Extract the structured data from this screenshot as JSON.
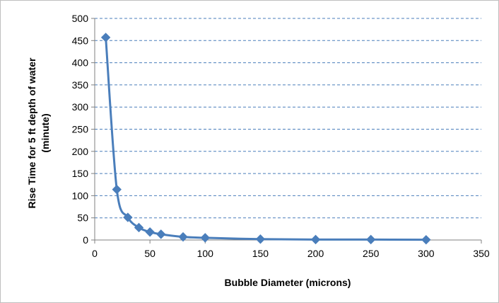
{
  "chart_data": {
    "type": "line",
    "title": "",
    "xlabel": "Bubble Diameter (microns)",
    "ylabel_line1": "Rise Time for 5 ft depth of water",
    "ylabel_line2": "(minute)",
    "xlim": [
      0,
      350
    ],
    "ylim": [
      0,
      500
    ],
    "x_ticks": [
      0,
      50,
      100,
      150,
      200,
      250,
      300,
      350
    ],
    "y_ticks": [
      0,
      50,
      100,
      150,
      200,
      250,
      300,
      350,
      400,
      450,
      500
    ],
    "grid": "horizontal dashed",
    "legend": "none",
    "marker": "diamond",
    "smooth": true,
    "series_color": "#4a7ebb",
    "grid_color": "#4a7ebb",
    "points": [
      {
        "x": 10,
        "y": 457
      },
      {
        "x": 20,
        "y": 114
      },
      {
        "x": 30,
        "y": 51
      },
      {
        "x": 40,
        "y": 28
      },
      {
        "x": 50,
        "y": 18
      },
      {
        "x": 60,
        "y": 13
      },
      {
        "x": 80,
        "y": 7
      },
      {
        "x": 100,
        "y": 5
      },
      {
        "x": 150,
        "y": 2
      },
      {
        "x": 200,
        "y": 1
      },
      {
        "x": 250,
        "y": 1
      },
      {
        "x": 300,
        "y": 0.5
      }
    ]
  }
}
